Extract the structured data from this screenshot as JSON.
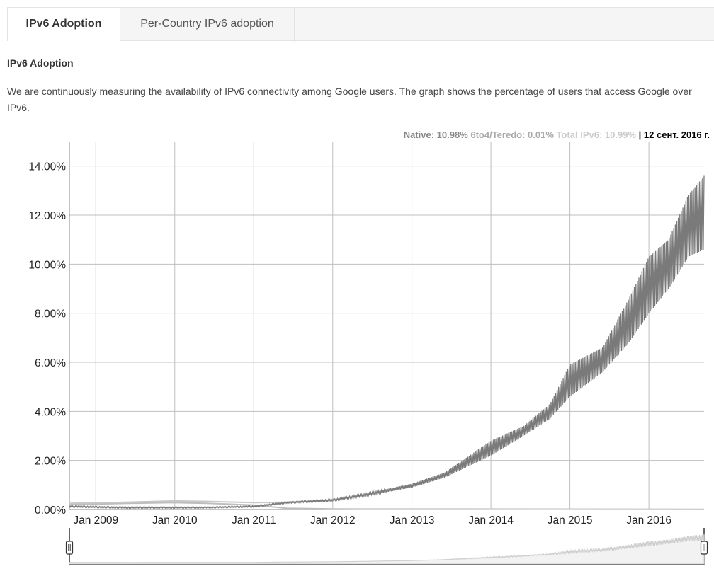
{
  "tabs": [
    {
      "label": "IPv6 Adoption",
      "active": true
    },
    {
      "label": "Per-Country IPv6 adoption",
      "active": false
    }
  ],
  "section": {
    "title": "IPv6 Adoption",
    "description": "We are continuously measuring the availability of IPv6 connectivity among Google users. The graph shows the percentage of users that access Google over IPv6."
  },
  "legend": {
    "native": "Native: 10.98%",
    "teredo": "6to4/Teredo: 0.01%",
    "total": "Total IPv6: 10.99%",
    "separator": "|",
    "date": "12 сент. 2016 г."
  },
  "colors": {
    "native_line": "#7a7a7a",
    "teredo_line": "#bdbdbd",
    "total_line": "#c8c8c8",
    "grid": "#bfbfbf",
    "navigator_fill": "#cccccc"
  },
  "chart_data": {
    "type": "line",
    "title": "",
    "xlabel": "",
    "ylabel": "",
    "x_ticks": [
      "Jan 2009",
      "Jan 2010",
      "Jan 2011",
      "Jan 2012",
      "Jan 2013",
      "Jan 2014",
      "Jan 2015",
      "Jan 2016"
    ],
    "y_ticks": [
      "0.00%",
      "2.00%",
      "4.00%",
      "6.00%",
      "8.00%",
      "10.00%",
      "12.00%",
      "14.00%"
    ],
    "xlim": [
      "2008-09-01",
      "2016-09-12"
    ],
    "ylim": [
      0,
      15
    ],
    "grid": true,
    "series": [
      {
        "name": "Native",
        "weekly_oscillation": true,
        "low": [
          [
            "2008-09-01",
            0.1
          ],
          [
            "2009-06-01",
            0.05
          ],
          [
            "2010-06-01",
            0.06
          ],
          [
            "2011-01-01",
            0.1
          ],
          [
            "2011-06-01",
            0.25
          ],
          [
            "2012-01-01",
            0.35
          ],
          [
            "2012-06-01",
            0.55
          ],
          [
            "2013-01-01",
            0.9
          ],
          [
            "2013-06-01",
            1.3
          ],
          [
            "2014-01-01",
            2.2
          ],
          [
            "2014-06-01",
            3.0
          ],
          [
            "2014-10-01",
            3.7
          ],
          [
            "2015-01-01",
            4.6
          ],
          [
            "2015-06-01",
            5.6
          ],
          [
            "2015-10-01",
            6.8
          ],
          [
            "2016-01-01",
            8.0
          ],
          [
            "2016-04-01",
            9.0
          ],
          [
            "2016-07-01",
            10.3
          ],
          [
            "2016-09-12",
            10.6
          ]
        ],
        "high": [
          [
            "2008-09-01",
            0.15
          ],
          [
            "2009-06-01",
            0.1
          ],
          [
            "2010-06-01",
            0.1
          ],
          [
            "2011-01-01",
            0.15
          ],
          [
            "2011-06-01",
            0.3
          ],
          [
            "2012-01-01",
            0.42
          ],
          [
            "2012-06-01",
            0.65
          ],
          [
            "2013-01-01",
            1.05
          ],
          [
            "2013-06-01",
            1.5
          ],
          [
            "2014-01-01",
            2.8
          ],
          [
            "2014-06-01",
            3.4
          ],
          [
            "2014-10-01",
            4.3
          ],
          [
            "2015-01-01",
            5.9
          ],
          [
            "2015-06-01",
            6.6
          ],
          [
            "2015-10-01",
            8.6
          ],
          [
            "2016-01-01",
            10.3
          ],
          [
            "2016-04-01",
            11.0
          ],
          [
            "2016-07-01",
            12.8
          ],
          [
            "2016-09-12",
            13.6
          ]
        ]
      },
      {
        "name": "6to4/Teredo",
        "values": [
          [
            "2008-09-01",
            0.2
          ],
          [
            "2009-06-01",
            0.25
          ],
          [
            "2010-01-01",
            0.28
          ],
          [
            "2010-06-01",
            0.25
          ],
          [
            "2011-01-01",
            0.18
          ],
          [
            "2011-06-01",
            0.05
          ],
          [
            "2012-01-01",
            0.02
          ],
          [
            "2016-09-12",
            0.01
          ]
        ]
      },
      {
        "name": "Total IPv6",
        "values": [
          [
            "2008-09-01",
            0.25
          ],
          [
            "2009-06-01",
            0.3
          ],
          [
            "2010-01-01",
            0.35
          ],
          [
            "2010-06-01",
            0.33
          ],
          [
            "2011-01-01",
            0.28
          ],
          [
            "2011-06-01",
            0.3
          ],
          [
            "2012-01-01",
            0.37
          ]
        ]
      }
    ]
  }
}
